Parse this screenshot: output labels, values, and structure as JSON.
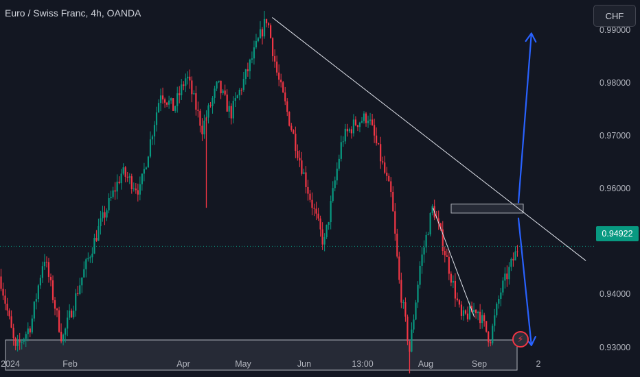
{
  "header": {
    "symbol_title": "Euro / Swiss Franc, 4h, OANDA",
    "currency_button": "CHF"
  },
  "price_badge": "0.94922",
  "alert_icon": "lightning-icon",
  "colors": {
    "background": "#131722",
    "up": "#089981",
    "down": "#f23645",
    "arrow": "#2962ff",
    "trendline": "#e0e3eb",
    "zone": "#2a2e39"
  },
  "chart_data": {
    "type": "candlestick",
    "title": "Euro / Swiss Franc, 4h, OANDA",
    "ylim": [
      0.9245,
      0.9958
    ],
    "yticks": [
      {
        "label": "0.99000",
        "value": 0.99
      },
      {
        "label": "0.98000",
        "value": 0.98
      },
      {
        "label": "0.97000",
        "value": 0.97
      },
      {
        "label": "0.96000",
        "value": 0.96
      },
      {
        "label": "0.94000",
        "value": 0.94
      },
      {
        "label": "0.93000",
        "value": 0.93
      }
    ],
    "xticks": [
      "2024",
      "Feb",
      "Apr",
      "May",
      "Jun",
      "13:00",
      "Aug",
      "Sep",
      "2"
    ],
    "last_price": 0.94922,
    "price_path": [
      [
        0.0,
        0.9435
      ],
      [
        0.03,
        0.9295
      ],
      [
        0.06,
        0.9345
      ],
      [
        0.085,
        0.9475
      ],
      [
        0.12,
        0.9315
      ],
      [
        0.155,
        0.9425
      ],
      [
        0.19,
        0.9525
      ],
      [
        0.235,
        0.9632
      ],
      [
        0.27,
        0.9598
      ],
      [
        0.31,
        0.9785
      ],
      [
        0.335,
        0.9752
      ],
      [
        0.36,
        0.9815
      ],
      [
        0.39,
        0.9715
      ],
      [
        0.42,
        0.9798
      ],
      [
        0.445,
        0.9742
      ],
      [
        0.475,
        0.9818
      ],
      [
        0.515,
        0.9925
      ],
      [
        0.535,
        0.9815
      ],
      [
        0.565,
        0.9705
      ],
      [
        0.595,
        0.9595
      ],
      [
        0.625,
        0.9495
      ],
      [
        0.66,
        0.9695
      ],
      [
        0.685,
        0.9725
      ],
      [
        0.71,
        0.9738
      ],
      [
        0.735,
        0.9655
      ],
      [
        0.755,
        0.9585
      ],
      [
        0.77,
        0.9425
      ],
      [
        0.79,
        0.9295
      ],
      [
        0.81,
        0.9455
      ],
      [
        0.835,
        0.9568
      ],
      [
        0.865,
        0.9455
      ],
      [
        0.89,
        0.9355
      ],
      [
        0.92,
        0.9375
      ],
      [
        0.945,
        0.9315
      ],
      [
        0.965,
        0.9405
      ],
      [
        1.0,
        0.9492
      ]
    ],
    "spikes": [
      {
        "x": 0.398,
        "low": 0.9565
      },
      {
        "x": 0.79,
        "low": 0.9252
      }
    ],
    "zones": [
      {
        "name": "support-zone",
        "low": 0.9258,
        "high": 0.9315,
        "from": "2024",
        "to": "Sep"
      },
      {
        "name": "resistance-zone",
        "low": 0.9555,
        "high": 0.9572,
        "from": "Aug",
        "to": "Sep"
      }
    ],
    "trendlines": [
      {
        "name": "descending-trendline",
        "from": [
          0.525,
          0.9925
        ],
        "to": [
          1.13,
          0.9465
        ]
      },
      {
        "name": "local-trendline",
        "from": [
          0.835,
          0.9565
        ],
        "to": [
          0.915,
          0.9358
        ]
      }
    ],
    "arrows": [
      {
        "name": "bullish-projection-arrow",
        "from": [
          1.0,
          0.9575
        ],
        "to": [
          1.025,
          0.9895
        ]
      },
      {
        "name": "bearish-projection-arrow",
        "from": [
          1.0,
          0.9545
        ],
        "to": [
          1.025,
          0.9305
        ]
      }
    ]
  }
}
